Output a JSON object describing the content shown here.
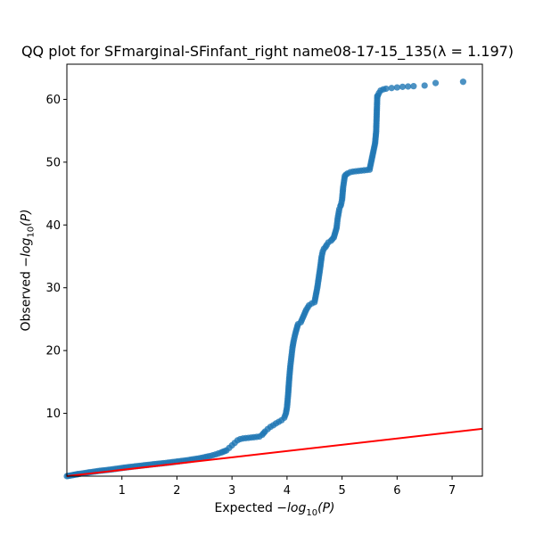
{
  "chart_data": {
    "type": "scatter",
    "title": "QQ plot for SFmarginal-SFinfant_right name08-17-15_135(λ = 1.197)",
    "xlabel": {
      "prefix": "Expected ",
      "base": "−log",
      "sub": "10",
      "suffix": "(P)"
    },
    "ylabel": {
      "prefix": "Observed ",
      "base": "−log",
      "sub": "10",
      "suffix": "(P)"
    },
    "xlim": [
      0,
      7.55
    ],
    "ylim": [
      0,
      65.6
    ],
    "xticks": [
      1,
      2,
      3,
      4,
      5,
      6,
      7
    ],
    "yticks": [
      10,
      20,
      30,
      40,
      50,
      60
    ],
    "grid": false,
    "point_color": "#1f77b4",
    "line_color": "#ff0000",
    "reference_line": {
      "x": [
        0,
        7.55
      ],
      "y": [
        0,
        7.55
      ]
    },
    "x": [
      0.2,
      0.4,
      0.6,
      0.8,
      1.0,
      1.2,
      1.4,
      1.6,
      1.8,
      2.0,
      2.2,
      2.4,
      2.6,
      2.7,
      2.8,
      2.9,
      2.95,
      3.0,
      3.05,
      3.1,
      3.15,
      3.2,
      3.3,
      3.4,
      3.5,
      3.55,
      3.6,
      3.65,
      3.7,
      3.75,
      3.8,
      3.85,
      3.9,
      3.95,
      3.98,
      4.0,
      4.02,
      4.04,
      4.06,
      4.08,
      4.1,
      4.12,
      4.14,
      4.16,
      4.18,
      4.2,
      4.25,
      4.3,
      4.35,
      4.4,
      4.45,
      4.5,
      4.55,
      4.6,
      4.63,
      4.65,
      4.67,
      4.7,
      4.72,
      4.75,
      4.8,
      4.85,
      4.9,
      4.92,
      4.95,
      4.97,
      4.98,
      5.0,
      5.02,
      5.05,
      5.07,
      5.1,
      5.15,
      5.2,
      5.3,
      5.4,
      5.5,
      5.6,
      5.62,
      5.64,
      5.65,
      5.67,
      5.7,
      5.75,
      5.8,
      5.9,
      6.0,
      6.1,
      6.2,
      6.3,
      6.5,
      6.7,
      7.2
    ],
    "y": [
      0.32,
      0.6,
      0.85,
      1.05,
      1.3,
      1.52,
      1.72,
      1.92,
      2.1,
      2.32,
      2.55,
      2.82,
      3.2,
      3.45,
      3.75,
      4.1,
      4.5,
      4.9,
      5.3,
      5.7,
      5.9,
      6.0,
      6.1,
      6.2,
      6.3,
      6.6,
      7.1,
      7.5,
      7.85,
      8.1,
      8.4,
      8.65,
      8.9,
      9.3,
      10.0,
      11.0,
      13.0,
      15.5,
      17.5,
      19.0,
      20.5,
      21.5,
      22.3,
      23.0,
      23.6,
      24.2,
      24.5,
      25.5,
      26.5,
      27.2,
      27.5,
      27.7,
      30.0,
      33.0,
      35.0,
      35.8,
      36.2,
      36.5,
      36.8,
      37.2,
      37.5,
      38.0,
      39.5,
      41.0,
      42.5,
      43.0,
      43.2,
      44.0,
      46.0,
      47.8,
      48.0,
      48.2,
      48.4,
      48.5,
      48.6,
      48.7,
      48.8,
      53.0,
      54.9,
      60.5,
      60.6,
      61.0,
      61.4,
      61.6,
      61.7,
      61.8,
      61.9,
      62.0,
      62.05,
      62.1,
      62.2,
      62.6,
      62.8
    ]
  }
}
